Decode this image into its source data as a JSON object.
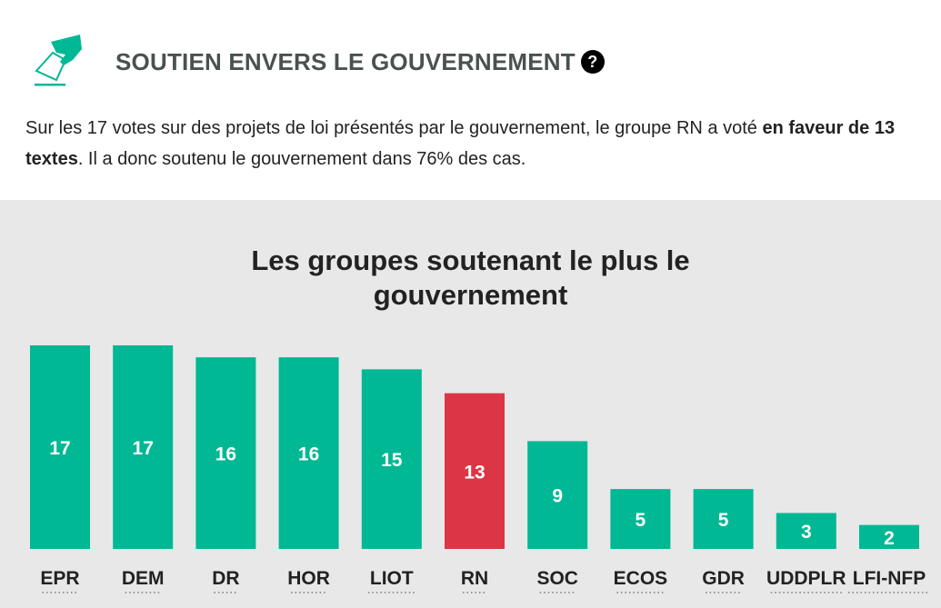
{
  "header": {
    "icon": "ballot-box-icon",
    "title": "SOUTIEN ENVERS LE GOUVERNEMENT",
    "help": "?",
    "desc_part1": "Sur les 17 votes sur des projets de loi présentés par le gouvernement, le groupe RN a voté ",
    "desc_bold": "en faveur de 13 textes",
    "desc_part2": ". Il a donc soutenu le gouvernement dans 76% des cas."
  },
  "colors": {
    "default": "#00b894",
    "highlight": "#dc3545",
    "background": "#e8e8e8"
  },
  "chart_data": {
    "type": "bar",
    "title": "Les groupes soutenant le plus le gouvernement",
    "categories": [
      "EPR",
      "DEM",
      "DR",
      "HOR",
      "LIOT",
      "RN",
      "SOC",
      "ECOS",
      "GDR",
      "UDDPLR",
      "LFI-NFP"
    ],
    "values": [
      17,
      17,
      16,
      16,
      15,
      13,
      9,
      5,
      5,
      3,
      2
    ],
    "highlight": "RN",
    "ylim": [
      0,
      17
    ],
    "grid": false,
    "data_labels": true
  }
}
